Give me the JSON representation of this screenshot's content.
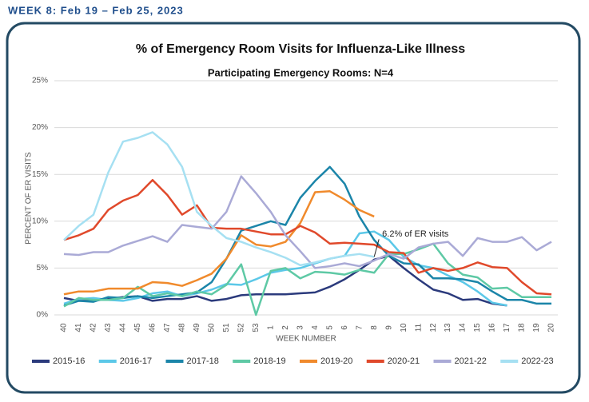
{
  "header": "WEEK 8: Feb 19 – Feb 25, 2023",
  "chart_data": {
    "type": "line",
    "title": "% of Emergency Room Visits for Influenza-Like Illness",
    "subtitle": "Participating Emergency Rooms: N=4",
    "x_label": "WEEK NUMBER",
    "y_label": "PERCENT OF ER VISITS",
    "annotation": "6.2% of ER visits",
    "categories": [
      "40",
      "41",
      "42",
      "43",
      "44",
      "45",
      "46",
      "47",
      "48",
      "49",
      "50",
      "51",
      "52",
      "53",
      "1",
      "2",
      "3",
      "4",
      "5",
      "6",
      "7",
      "8",
      "9",
      "10",
      "11",
      "12",
      "13",
      "14",
      "15",
      "16",
      "17",
      "18",
      "19",
      "20"
    ],
    "ylim": [
      0,
      25
    ],
    "yticks": [
      {
        "value": 0,
        "label": "0%"
      },
      {
        "value": 5,
        "label": "5%"
      },
      {
        "value": 10,
        "label": "10%"
      },
      {
        "value": 15,
        "label": "15%"
      },
      {
        "value": 20,
        "label": "20%"
      },
      {
        "value": 25,
        "label": "25%"
      }
    ],
    "grid": true,
    "legend": "bottom",
    "series": [
      {
        "name": "2015-16",
        "color": "#2b3a7c",
        "values": [
          1.8,
          1.5,
          1.5,
          1.7,
          1.9,
          2.0,
          1.5,
          1.7,
          1.7,
          2.0,
          1.5,
          1.7,
          2.1,
          2.2,
          2.2,
          2.2,
          2.3,
          2.4,
          3.0,
          3.8,
          4.8,
          5.9,
          6.3,
          5.0,
          3.8,
          2.7,
          2.3,
          1.6,
          1.7,
          1.2,
          1.0,
          null,
          null,
          null
        ]
      },
      {
        "name": "2016-17",
        "color": "#5cc8e8",
        "values": [
          1.2,
          1.7,
          1.8,
          1.6,
          1.5,
          1.8,
          2.3,
          2.5,
          2.0,
          2.3,
          2.7,
          3.3,
          3.2,
          3.8,
          4.5,
          4.8,
          5.0,
          5.5,
          6.0,
          6.3,
          8.7,
          8.9,
          8.0,
          6.2,
          5.3,
          5.0,
          4.2,
          3.5,
          2.5,
          1.3,
          1.0,
          null,
          null,
          null
        ]
      },
      {
        "name": "2017-18",
        "color": "#1b85a9",
        "values": [
          1.0,
          1.5,
          1.4,
          1.9,
          1.8,
          2.0,
          1.8,
          2.0,
          2.2,
          2.4,
          3.5,
          6.0,
          9.0,
          9.5,
          10.0,
          9.6,
          12.5,
          14.3,
          15.8,
          14.0,
          10.5,
          8.0,
          6.3,
          5.5,
          5.4,
          3.9,
          3.9,
          3.8,
          3.5,
          2.5,
          1.6,
          1.6,
          1.2,
          1.2
        ]
      },
      {
        "name": "2018-19",
        "color": "#5ec9a5",
        "values": [
          0.9,
          1.8,
          1.6,
          1.6,
          1.8,
          3.0,
          2.0,
          2.3,
          2.0,
          2.5,
          2.2,
          3.2,
          5.4,
          0.0,
          4.7,
          5.0,
          3.9,
          4.6,
          4.5,
          4.3,
          4.8,
          4.5,
          6.5,
          6.5,
          7.0,
          7.6,
          5.5,
          4.3,
          4.0,
          2.8,
          2.9,
          1.9,
          1.9,
          1.9
        ]
      },
      {
        "name": "2019-20",
        "color": "#f08a2c",
        "values": [
          2.2,
          2.5,
          2.5,
          2.8,
          2.8,
          2.8,
          3.5,
          3.4,
          3.1,
          3.7,
          4.4,
          6.0,
          8.5,
          7.5,
          7.3,
          7.8,
          9.8,
          13.1,
          13.2,
          12.3,
          11.2,
          10.5,
          null,
          null,
          null,
          null,
          null,
          null,
          null,
          null,
          null,
          null,
          null,
          null
        ]
      },
      {
        "name": "2020-21",
        "color": "#e0492b",
        "values": [
          8.0,
          8.5,
          9.2,
          11.2,
          12.2,
          12.8,
          14.4,
          12.8,
          10.7,
          11.7,
          9.3,
          9.2,
          9.2,
          8.9,
          8.6,
          8.6,
          9.5,
          8.8,
          7.6,
          7.7,
          7.6,
          7.5,
          6.7,
          6.6,
          4.5,
          5.0,
          4.7,
          5.0,
          5.6,
          5.1,
          5.0,
          3.5,
          2.3,
          2.2
        ]
      },
      {
        "name": "2021-22",
        "color": "#aaaad6",
        "values": [
          6.5,
          6.4,
          6.7,
          6.7,
          7.4,
          7.9,
          8.4,
          7.8,
          9.6,
          9.4,
          9.2,
          11.0,
          14.8,
          13.0,
          11.0,
          8.5,
          6.8,
          5.0,
          5.2,
          5.5,
          5.2,
          5.8,
          6.5,
          6.0,
          7.2,
          7.6,
          7.8,
          6.3,
          8.2,
          7.8,
          7.8,
          8.3,
          6.9,
          7.8
        ]
      },
      {
        "name": "2022-23",
        "color": "#a6e0f2",
        "values": [
          8.0,
          9.5,
          10.7,
          15.2,
          18.5,
          18.9,
          19.5,
          18.2,
          15.8,
          11.0,
          9.5,
          8.2,
          7.8,
          7.2,
          6.7,
          6.1,
          5.3,
          5.6,
          6.0,
          6.3,
          6.5,
          6.2,
          null,
          null,
          null,
          null,
          null,
          null,
          null,
          null,
          null,
          null,
          null,
          null
        ]
      }
    ]
  }
}
